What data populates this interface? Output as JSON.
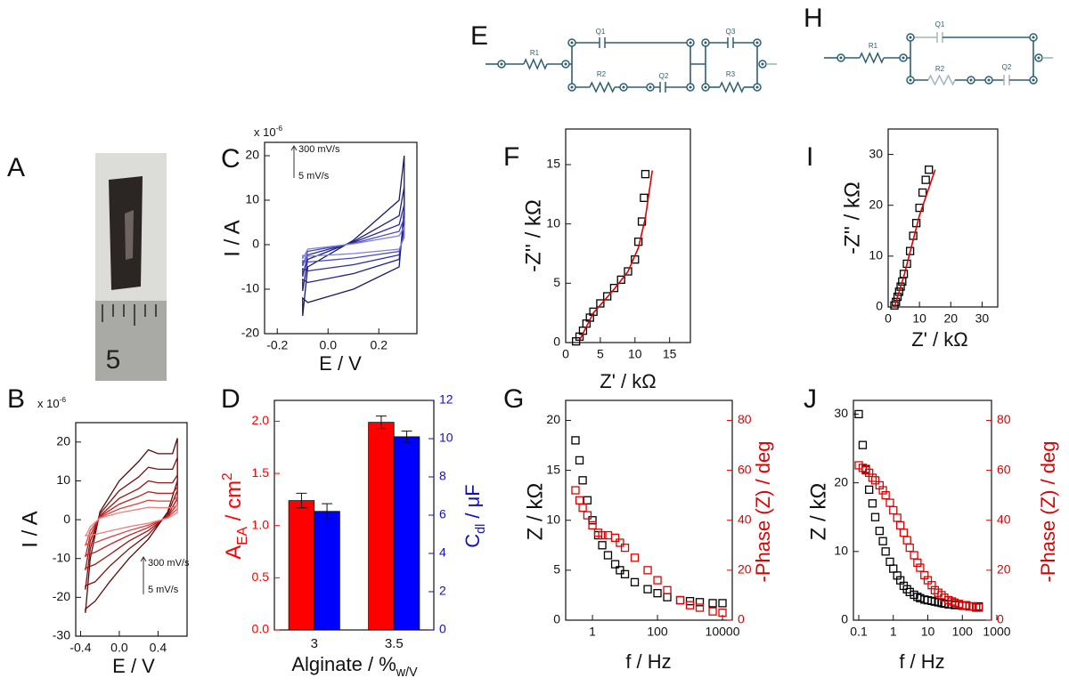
{
  "photo": {
    "panel": "A",
    "ruler_label": "5"
  },
  "circuits": [
    {
      "panel": "E",
      "labels": [
        "R1",
        "Q1",
        "R2",
        "Q2",
        "Q3",
        "R3"
      ]
    },
    {
      "panel": "H",
      "labels": [
        "R1",
        "Q1",
        "R2",
        "Q2"
      ]
    }
  ],
  "chart_data": [
    {
      "panel": "B",
      "type": "line",
      "multiplier": [
        {
          "text": "x 10"
        },
        {
          "text": "-6",
          "shift": "sup"
        }
      ],
      "annotations": [
        "300 mV/s",
        "5 mV/s"
      ],
      "xlabel": "E / V",
      "ylabel": "I / A",
      "xlim": [
        -0.45,
        0.7
      ],
      "xticks": [
        -0.4,
        {
          "value": 0,
          "label": "0.0"
        },
        0.4
      ],
      "ylim": [
        -30,
        25
      ],
      "yticks": [
        -30,
        -20,
        -10,
        0,
        10,
        20
      ],
      "x": [
        -0.35,
        -0.3,
        -0.2,
        0,
        0.2,
        0.3,
        0.4,
        0.55,
        0.6,
        0.6,
        0.5,
        0.3,
        0.1,
        -0.1,
        -0.25,
        -0.35,
        -0.35
      ],
      "series": [
        {
          "color": "#5a0a0a",
          "values": [
            -24,
            -10,
            2,
            10,
            15,
            18,
            17,
            17,
            21,
            10,
            2,
            -5,
            -10,
            -16,
            -21,
            -23,
            -24
          ]
        },
        {
          "color": "#7a1010",
          "values": [
            -18,
            -7.5,
            1.5,
            7.5,
            11,
            13.5,
            13,
            13,
            16,
            7.5,
            1.5,
            -3.8,
            -7.5,
            -12,
            -16,
            -17,
            -18
          ]
        },
        {
          "color": "#9a1515",
          "values": [
            -13,
            -5.5,
            1,
            5.5,
            8,
            10,
            9.5,
            9.5,
            11.5,
            5.5,
            1,
            -2.8,
            -5.5,
            -9,
            -11.5,
            -12.5,
            -13
          ]
        },
        {
          "color": "#c02020",
          "values": [
            -9.6,
            -4,
            0.8,
            4,
            6,
            7.2,
            6.8,
            6.8,
            8.4,
            4,
            0.8,
            -2,
            -4,
            -6.4,
            -8.4,
            -9.2,
            -9.6
          ]
        },
        {
          "color": "#d84040",
          "values": [
            -6.7,
            -2.8,
            0.6,
            2.8,
            4.2,
            5,
            4.8,
            4.8,
            5.9,
            2.8,
            0.6,
            -1.4,
            -2.8,
            -4.5,
            -5.9,
            -6.4,
            -6.7
          ]
        },
        {
          "color": "#f08080",
          "values": [
            -4.3,
            -1.8,
            0.4,
            1.8,
            2.7,
            3.2,
            3.1,
            3.1,
            3.8,
            1.8,
            0.4,
            -0.9,
            -1.8,
            -2.9,
            -3.8,
            -4.1,
            -4.3
          ]
        }
      ]
    },
    {
      "panel": "C",
      "type": "line",
      "multiplier": [
        {
          "text": "x 10"
        },
        {
          "text": "-6",
          "shift": "sup"
        }
      ],
      "annotations": [
        "300 mV/s",
        "5 mV/s"
      ],
      "xlabel": "E / V",
      "ylabel": "I / A",
      "xlim": [
        -0.25,
        0.35
      ],
      "xticks": [
        -0.2,
        {
          "value": 0,
          "label": "0.0"
        },
        0.2
      ],
      "ylim": [
        -20,
        23
      ],
      "yticks": [
        -20,
        -10,
        0,
        10,
        20
      ],
      "x": [
        -0.1,
        -0.08,
        0.1,
        0.28,
        0.3,
        0.3,
        0.28,
        0.1,
        -0.08,
        -0.1,
        -0.1
      ],
      "series": [
        {
          "color": "#1a1a5e",
          "values": [
            -16,
            -5,
            1,
            10,
            20,
            8,
            -5,
            -10,
            -13,
            -12,
            -16
          ]
        },
        {
          "color": "#202080",
          "values": [
            -10.4,
            -3.3,
            0.7,
            6.5,
            13,
            5.2,
            -3.3,
            -6.5,
            -8.5,
            -7.8,
            -10.4
          ]
        },
        {
          "color": "#2a2aa0",
          "values": [
            -7.2,
            -2.3,
            0.5,
            4.5,
            9,
            3.6,
            -2.3,
            -4.5,
            -5.9,
            -5.4,
            -7.2
          ]
        },
        {
          "color": "#4a4ac8",
          "values": [
            -4.8,
            -1.5,
            0.3,
            3,
            6,
            2.4,
            -1.5,
            -3,
            -3.9,
            -3.6,
            -4.8
          ]
        },
        {
          "color": "#8080e0",
          "values": [
            -3.2,
            -1,
            0.2,
            2,
            4,
            1.6,
            -1,
            -2,
            -2.6,
            -2.4,
            -3.2
          ]
        }
      ]
    },
    {
      "panel": "D",
      "type": "bar",
      "xlabel": [
        {
          "text": "Alginate / %"
        },
        {
          "text": "w/V",
          "shift": "sub"
        }
      ],
      "ylabel": [
        {
          "text": "A"
        },
        {
          "text": "EA",
          "shift": "sub"
        },
        {
          "text": " / cm"
        },
        {
          "text": "2",
          "shift": "sup"
        }
      ],
      "y2label": [
        {
          "text": "C"
        },
        {
          "text": "dl",
          "shift": "sub"
        },
        {
          "text": " / μF"
        }
      ],
      "ycolor": "#ff0000",
      "y2color": "#1010c0",
      "categories": [
        "3",
        "3.5"
      ],
      "ylim": [
        0,
        2.2
      ],
      "yticks": [
        {
          "value": 0,
          "label": "0.0"
        },
        0.5,
        {
          "value": 1,
          "label": "1.0"
        },
        1.5,
        {
          "value": 2,
          "label": "2.0"
        }
      ],
      "y2lim": [
        0,
        12
      ],
      "y2ticks": [
        0,
        2,
        4,
        6,
        8,
        10,
        12
      ],
      "series": [
        {
          "color": "#ff0000",
          "values": [
            1.24,
            1.99
          ],
          "errors": [
            0.07,
            0.06
          ]
        },
        {
          "color": "#0000ff",
          "axis": "y2",
          "values": [
            6.2,
            10.1
          ],
          "errors": [
            0.4,
            0.3
          ]
        }
      ]
    },
    {
      "panel": "F",
      "type": "scatter",
      "xlabel": "Z' / kΩ",
      "ylabel": "-Z'' / kΩ",
      "xlim": [
        0,
        18
      ],
      "xticks": [
        0,
        5,
        10,
        15
      ],
      "ylim": [
        0,
        18
      ],
      "yticks": [
        0,
        5,
        10,
        15
      ],
      "series": [
        {
          "color": "#000000",
          "style": "markers",
          "x": [
            1.5,
            2,
            2.5,
            3,
            3.5,
            4,
            5,
            6,
            7,
            8,
            9,
            10,
            10.5,
            11,
            11.3,
            11.5
          ],
          "values": [
            0.1,
            0.5,
            1,
            1.6,
            2.1,
            2.6,
            3.3,
            3.9,
            4.6,
            5.3,
            6,
            7,
            8.5,
            10.2,
            12.2,
            14.2
          ]
        },
        {
          "color": "#e00000",
          "style": "line",
          "x": [
            2,
            4,
            7,
            9,
            10.5,
            11.5,
            12.5
          ],
          "values": [
            0.2,
            2.5,
            4.5,
            6,
            8,
            10.5,
            14.5
          ]
        }
      ]
    },
    {
      "panel": "G",
      "type": "scatter",
      "xscale": "log",
      "xlabel": "f / Hz",
      "ylabel": "Z / kΩ",
      "y2label": "-Phase (Z) / deg",
      "y2color": "#e00000",
      "xlim": [
        0.15,
        20000
      ],
      "xticks": [
        1,
        100,
        10000
      ],
      "ylim": [
        0,
        22
      ],
      "yticks": [
        0,
        5,
        10,
        15,
        20
      ],
      "y2lim": [
        0,
        88
      ],
      "y2ticks": [
        0,
        20,
        40,
        60,
        80
      ],
      "x": [
        0.3,
        0.4,
        0.5,
        0.7,
        1,
        1.5,
        2,
        3,
        5,
        7,
        10,
        20,
        50,
        100,
        200,
        500,
        1000,
        2000,
        5000,
        10000
      ],
      "series": [
        {
          "color": "#000000",
          "style": "markers",
          "values": [
            18,
            16,
            14,
            12,
            10,
            8.5,
            7.5,
            6.5,
            5.6,
            5,
            4.6,
            3.8,
            3.1,
            2.7,
            2.3,
            2,
            1.9,
            1.8,
            1.7,
            1.7
          ]
        },
        {
          "color": "#e00000",
          "style": "markers",
          "axis": "y2",
          "values": [
            52,
            48,
            45,
            42,
            38,
            35,
            34,
            34,
            33,
            31,
            29,
            25,
            20,
            16,
            12,
            8,
            6,
            5,
            3.5,
            3
          ]
        }
      ]
    },
    {
      "panel": "I",
      "type": "scatter",
      "xlabel": "Z' / kΩ",
      "ylabel": "-Z'' / kΩ",
      "xlim": [
        0,
        35
      ],
      "xticks": [
        0,
        10,
        20,
        30
      ],
      "ylim": [
        0,
        35
      ],
      "yticks": [
        0,
        10,
        20,
        30
      ],
      "series": [
        {
          "color": "#000000",
          "style": "markers",
          "x": [
            2,
            2.5,
            3,
            3.5,
            4,
            4.5,
            5,
            6,
            7,
            8,
            9,
            10,
            11,
            12,
            13
          ],
          "values": [
            0.3,
            1,
            2,
            3,
            4,
            5,
            6.5,
            8.5,
            11,
            14,
            16.5,
            19.5,
            22.5,
            25,
            27
          ]
        },
        {
          "color": "#e00000",
          "style": "line",
          "x": [
            2,
            5,
            10,
            15
          ],
          "values": [
            0,
            6,
            18,
            27
          ]
        }
      ]
    },
    {
      "panel": "J",
      "type": "scatter",
      "xscale": "log",
      "xlabel": "f / Hz",
      "ylabel": "Z / kΩ",
      "y2label": "-Phase (Z) / deg",
      "y2color": "#e00000",
      "xlim": [
        0.07,
        700
      ],
      "xticks": [
        0.1,
        1,
        10,
        100,
        1000
      ],
      "ylim": [
        0,
        32
      ],
      "yticks": [
        0,
        10,
        20,
        30
      ],
      "y2lim": [
        0,
        88
      ],
      "y2ticks": [
        0,
        20,
        40,
        60,
        80
      ],
      "x": [
        0.1,
        0.13,
        0.16,
        0.2,
        0.25,
        0.3,
        0.4,
        0.5,
        0.6,
        0.8,
        1,
        1.3,
        1.6,
        2,
        2.5,
        3,
        4,
        5,
        6,
        8,
        10,
        13,
        16,
        20,
        25,
        30,
        40,
        50,
        60,
        80,
        100,
        130,
        160,
        200,
        250,
        300
      ],
      "series": [
        {
          "color": "#000000",
          "style": "markers",
          "values": [
            30,
            25.5,
            22,
            19,
            17,
            15,
            13,
            11.5,
            10,
            8.5,
            7.5,
            6.5,
            5.8,
            5,
            4.5,
            4.1,
            3.7,
            3.4,
            3.2,
            3,
            2.9,
            2.8,
            2.7,
            2.6,
            2.5,
            2.4,
            2.3,
            2.3,
            2.2,
            2.2,
            2.1,
            2.1,
            2,
            2,
            2,
            2
          ]
        },
        {
          "color": "#e00000",
          "style": "markers",
          "axis": "y2",
          "values": [
            62,
            61,
            60,
            59,
            57,
            56,
            54,
            52,
            50,
            47,
            44,
            41,
            38,
            35,
            32,
            29,
            26,
            23,
            21,
            18,
            16,
            14,
            12,
            11,
            10,
            9,
            8,
            7.5,
            7,
            6.5,
            6,
            6,
            5.5,
            5.5,
            5,
            5
          ]
        }
      ]
    }
  ]
}
